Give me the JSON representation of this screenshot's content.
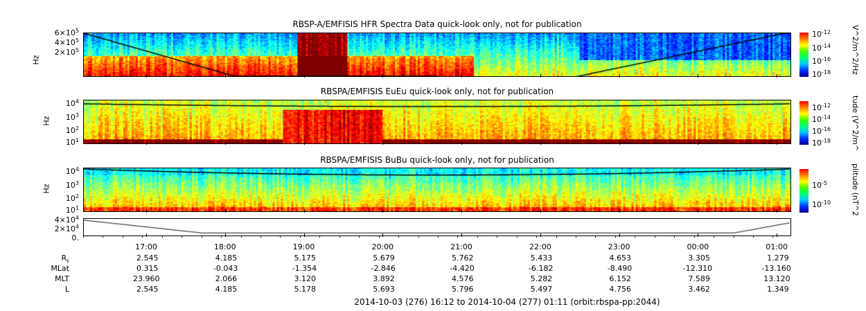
{
  "chart_data": {
    "type": "heatmap",
    "panels": [
      {
        "title": "RBSP-A/EMFISIS  HFR Spectra Data quick-look only, not for publication",
        "ylabel": "Hz",
        "yticks": [
          "6×10",
          "5",
          "4×10",
          "5",
          "2×10",
          "5"
        ],
        "ytick_labels": [
          {
            "b": "6×10",
            "e": "5"
          },
          {
            "b": "4×10",
            "e": "5"
          },
          {
            "b": "2×10",
            "e": "5"
          }
        ],
        "colorbar": {
          "ticks": [
            {
              "b": "10",
              "e": "-12"
            },
            {
              "b": "10",
              "e": "-14"
            },
            {
              "b": "10",
              "e": "-16"
            },
            {
              "b": "10",
              "e": "-18"
            }
          ],
          "label": "V^2/m^2/Hz"
        }
      },
      {
        "title": "RBSPA/EMFISIS  EuEu quick-look only, not for publication",
        "ylabel": "Hz",
        "ytick_labels": [
          {
            "b": "10",
            "e": "4"
          },
          {
            "b": "10",
            "e": "3"
          },
          {
            "b": "10",
            "e": "2"
          },
          {
            "b": "10",
            "e": "1"
          }
        ],
        "colorbar": {
          "ticks": [
            {
              "b": "10",
              "e": "-12"
            },
            {
              "b": "10",
              "e": "-14"
            },
            {
              "b": "10",
              "e": "-16"
            },
            {
              "b": "10",
              "e": "-18"
            }
          ],
          "label": "tude (V^2/m^"
        }
      },
      {
        "title": "RBSPA/EMFISIS  BuBu quick-look only, not for publication",
        "ylabel": "Hz",
        "ytick_labels": [
          {
            "b": "10",
            "e": "4"
          },
          {
            "b": "10",
            "e": "3"
          },
          {
            "b": "10",
            "e": "2"
          },
          {
            "b": "10",
            "e": "1"
          }
        ],
        "colorbar": {
          "ticks": [
            {
              "b": "10",
              "e": "-5"
            },
            {
              "b": "10",
              "e": "-10"
            }
          ],
          "label": "plitude (nT^2"
        }
      },
      {
        "title": "",
        "ylabel": "",
        "ytick_labels": [
          {
            "b": "4×10",
            "e": "4"
          },
          {
            "b": "2×10",
            "e": "4"
          },
          {
            "b": "0.",
            "e": ""
          }
        ]
      }
    ],
    "x_ticks": [
      "17:00",
      "18:00",
      "19:00",
      "20:00",
      "21:00",
      "22:00",
      "23:00",
      "00:00",
      "01:00"
    ],
    "ephemeris": {
      "labels": [
        "R",
        "MLat",
        "MLT",
        "L"
      ],
      "re_sub": "E",
      "rows": [
        [
          "2.545",
          "4.185",
          "5.175",
          "5.679",
          "5.762",
          "5.433",
          "4.653",
          "3.305",
          "1.279"
        ],
        [
          "0.315",
          "-0.043",
          "-1.354",
          "-2.846",
          "-4.420",
          "-6.182",
          "-8.490",
          "-12.310",
          "-13.160"
        ],
        [
          "23.960",
          "2.066",
          "3.120",
          "3.892",
          "4.576",
          "5.282",
          "6.152",
          "7.589",
          "13.120"
        ],
        [
          "2.545",
          "4.185",
          "5.178",
          "5.693",
          "5.796",
          "5.497",
          "4.756",
          "3.462",
          "1.349"
        ]
      ]
    },
    "footer": "2014-10-03 (276) 16:12 to 2014-10-04 (277) 01:11 (orbit:rbspa-pp:2044)"
  }
}
